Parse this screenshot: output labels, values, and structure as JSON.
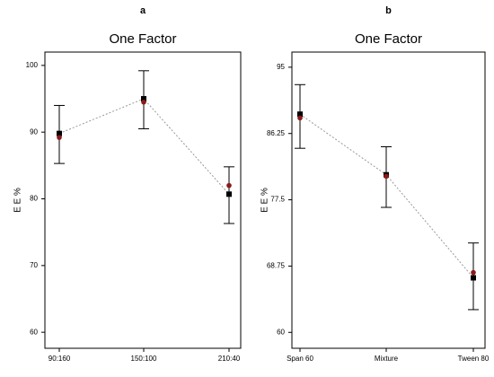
{
  "chart_data": [
    {
      "type": "line",
      "label": "a",
      "title": "One Factor",
      "y_label": "E E %",
      "categories": [
        "90:160",
        "150:100",
        "210:40"
      ],
      "ylim": [
        57.6,
        102
      ],
      "yticks": [
        60,
        70,
        80,
        90,
        100
      ],
      "series": [
        {
          "color": "#000000",
          "marker": "square",
          "line": true,
          "values": [
            89.8,
            95.0,
            80.7
          ]
        },
        {
          "color": "#8b1a1a",
          "marker": "circle",
          "line": false,
          "values": [
            89.2,
            94.5,
            82.0
          ]
        }
      ],
      "upper": [
        94.0,
        99.2,
        84.8
      ],
      "lower": [
        85.3,
        90.5,
        76.3
      ]
    },
    {
      "type": "line",
      "label": "b",
      "title": "One Factor",
      "y_label": "E E %",
      "categories": [
        "Span 60",
        "Mixture",
        "Tween 80"
      ],
      "ylim": [
        57.9,
        97
      ],
      "yticks": [
        60,
        68.75,
        77.5,
        86.25,
        95
      ],
      "series": [
        {
          "color": "#000000",
          "marker": "square",
          "line": true,
          "values": [
            88.8,
            80.8,
            67.2
          ]
        },
        {
          "color": "#8b1a1a",
          "marker": "circle",
          "line": false,
          "values": [
            88.3,
            80.6,
            67.9
          ]
        }
      ],
      "upper": [
        92.7,
        84.5,
        71.8
      ],
      "lower": [
        84.3,
        76.5,
        63.0
      ]
    }
  ]
}
